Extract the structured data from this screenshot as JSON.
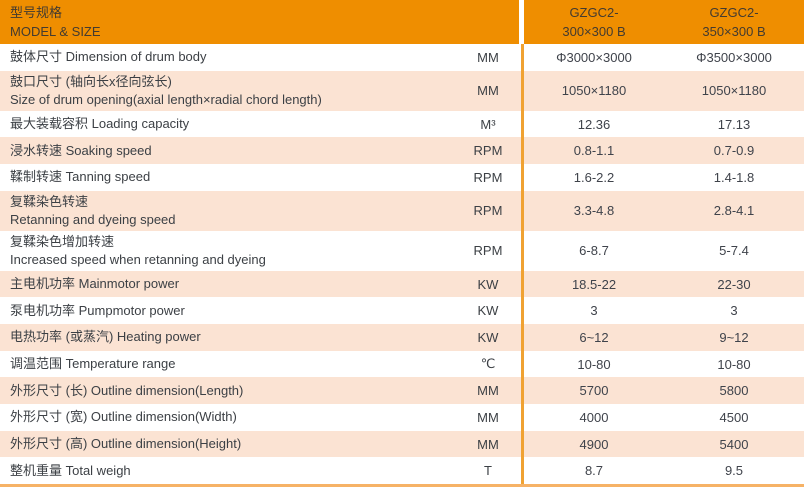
{
  "colors": {
    "header_bg": "#EF8E00",
    "header_text": "#433B30",
    "row_alt_bg": "#FBE3D3",
    "divider_line": "#F0A232",
    "bottom_line": "#F6B266",
    "body_text": "#3F434B"
  },
  "table": {
    "header": {
      "title_zh": "型号规格",
      "title_en": "MODEL & SIZE",
      "columns": [
        {
          "model": "GZGC2-",
          "size": "300×300 B"
        },
        {
          "model": "GZGC2-",
          "size": "350×300 B"
        }
      ]
    },
    "rows": [
      {
        "label_lines": [
          "鼓体尺寸 Dimension of drum body"
        ],
        "unit": "MM",
        "values": [
          "Φ3000×3000",
          "Φ3500×3000"
        ]
      },
      {
        "label_lines": [
          "鼓口尺寸 (轴向长x径向弦长)",
          "Size of drum opening(axial length×radial chord length)"
        ],
        "unit": "MM",
        "values": [
          "1050×1180",
          "1050×1180"
        ]
      },
      {
        "label_lines": [
          "最大装载容积 Loading capacity"
        ],
        "unit": "M³",
        "values": [
          "12.36",
          "17.13"
        ]
      },
      {
        "label_lines": [
          "浸水转速 Soaking speed"
        ],
        "unit": "RPM",
        "values": [
          "0.8-1.1",
          "0.7-0.9"
        ]
      },
      {
        "label_lines": [
          "鞣制转速 Tanning speed"
        ],
        "unit": "RPM",
        "values": [
          "1.6-2.2",
          "1.4-1.8"
        ]
      },
      {
        "label_lines": [
          "复鞣染色转速",
          "Retanning and dyeing speed"
        ],
        "unit": "RPM",
        "values": [
          "3.3-4.8",
          "2.8-4.1"
        ]
      },
      {
        "label_lines": [
          "复鞣染色增加转速",
          "Increased speed when retanning and dyeing"
        ],
        "unit": "RPM",
        "values": [
          "6-8.7",
          "5-7.4"
        ]
      },
      {
        "label_lines": [
          "主电机功率 Mainmotor power"
        ],
        "unit": "KW",
        "values": [
          "18.5-22",
          "22-30"
        ]
      },
      {
        "label_lines": [
          "泵电机功率 Pumpmotor power"
        ],
        "unit": "KW",
        "values": [
          "3",
          "3"
        ]
      },
      {
        "label_lines": [
          "电热功率 (或蒸汽) Heating power"
        ],
        "unit": "KW",
        "values": [
          "6~12",
          "9~12"
        ]
      },
      {
        "label_lines": [
          "调温范围 Temperature range"
        ],
        "unit": "℃",
        "values": [
          "10-80",
          "10-80"
        ]
      },
      {
        "label_lines": [
          "外形尺寸 (长) Outline dimension(Length)"
        ],
        "unit": "MM",
        "values": [
          "5700",
          "5800"
        ]
      },
      {
        "label_lines": [
          "外形尺寸 (宽) Outline dimension(Width)"
        ],
        "unit": "MM",
        "values": [
          "4000",
          "4500"
        ]
      },
      {
        "label_lines": [
          "外形尺寸 (高) Outline dimension(Height)"
        ],
        "unit": "MM",
        "values": [
          "4900",
          "5400"
        ]
      },
      {
        "label_lines": [
          "整机重量 Total weigh"
        ],
        "unit": "T",
        "values": [
          "8.7",
          "9.5"
        ]
      }
    ]
  }
}
